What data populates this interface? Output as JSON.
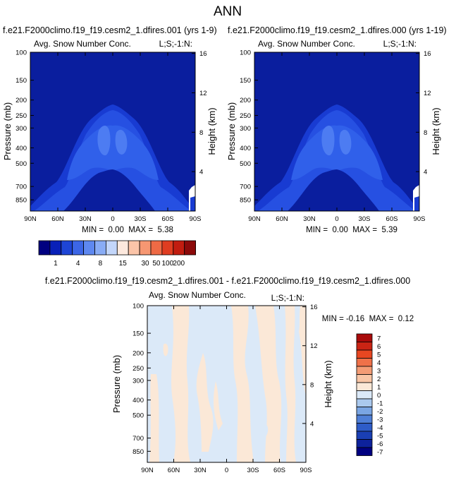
{
  "page_title": "ANN",
  "palette": {
    "snow": [
      "#000080",
      "#0820b8",
      "#1e45d6",
      "#3c66e6",
      "#5e88f0",
      "#89acf5",
      "#c3d6fa",
      "#fde9de",
      "#fbc4a8",
      "#f69772",
      "#ee6a45",
      "#df3d21",
      "#c11d10",
      "#8c0a0a"
    ],
    "diff_pos": [
      "#fbe8d7",
      "#f9c6a6",
      "#f49c75",
      "#ef7149",
      "#e84721",
      "#ca2414",
      "#a90b0b"
    ],
    "diff_neg": [
      "#dbe9f8",
      "#aac9ee",
      "#7aa5e3",
      "#4f7fd7",
      "#2e5cc8",
      "#1a3fb4",
      "#0d229c",
      "#000080"
    ]
  },
  "chart_data": [
    {
      "type": "heatmap",
      "title": "f.e21.F2000climo.f19_f19.cesm2_1.dfires.001 (yrs 1-9)",
      "subtitle_left": "Avg. Snow Number Conc.",
      "subtitle_right": "L;S;-1:N:",
      "xlabel": "",
      "ylabel": "Pressure (mb)",
      "ylabel_right": "Height (km)",
      "x_ticks": [
        "90N",
        "60N",
        "30N",
        "0",
        "30S",
        "60S",
        "90S"
      ],
      "y_ticks": [
        100,
        150,
        200,
        250,
        300,
        400,
        500,
        700,
        850
      ],
      "y_ticks_right": [
        16,
        12,
        8,
        4
      ],
      "y_scale": "log",
      "xlim": [
        90,
        -90
      ],
      "ylim": [
        100,
        1000
      ],
      "stats": "MIN =  0.00  MAX =  5.38",
      "min": 0.0,
      "max": 5.38
    },
    {
      "type": "heatmap",
      "title": "f.e21.F2000climo.f19_f19.cesm2_1.dfires.000 (yrs 1-19)",
      "subtitle_left": "Avg. Snow Number Conc.",
      "subtitle_right": "L;S;-1:N:",
      "xlabel": "",
      "ylabel": "Pressure (mb)",
      "ylabel_right": "Height (km)",
      "x_ticks": [
        "90N",
        "60N",
        "30N",
        "0",
        "30S",
        "60S",
        "90S"
      ],
      "y_ticks": [
        100,
        150,
        200,
        250,
        300,
        400,
        500,
        700,
        850
      ],
      "y_ticks_right": [
        16,
        12,
        8,
        4
      ],
      "y_scale": "log",
      "xlim": [
        90,
        -90
      ],
      "ylim": [
        100,
        1000
      ],
      "stats": "MIN =  0.00  MAX =  5.39",
      "min": 0.0,
      "max": 5.39
    },
    {
      "type": "heatmap",
      "title": "f.e21.F2000climo.f19_f19.cesm2_1.dfires.001 - f.e21.F2000climo.f19_f19.cesm2_1.dfires.000",
      "subtitle_left": "Avg. Snow Number Conc.",
      "subtitle_right": "L;S;-1:N:",
      "xlabel": "",
      "ylabel": "Pressure (mb)",
      "ylabel_right": "Height (km)",
      "x_ticks": [
        "90N",
        "60N",
        "30N",
        "0",
        "30S",
        "60S",
        "90S"
      ],
      "y_ticks": [
        100,
        150,
        200,
        250,
        300,
        400,
        500,
        700,
        850
      ],
      "y_ticks_right": [
        16,
        12,
        8,
        4
      ],
      "y_scale": "log",
      "xlim": [
        90,
        -90
      ],
      "ylim": [
        100,
        1000
      ],
      "stats": "MIN = -0.16  MAX =  0.12",
      "min": -0.16,
      "max": 0.12
    }
  ],
  "colorbar_top": {
    "orientation": "horizontal",
    "labels": [
      "1",
      "4",
      "8",
      "15",
      "30",
      "50",
      "100",
      "200"
    ],
    "num_boxes": 14
  },
  "colorbar_diff": {
    "orientation": "vertical",
    "labels": [
      "7",
      "6",
      "5",
      "4",
      "3",
      "2",
      "1",
      "0",
      "-1",
      "-2",
      "-3",
      "-4",
      "-5",
      "-6",
      "-7"
    ],
    "num_boxes": 15
  }
}
